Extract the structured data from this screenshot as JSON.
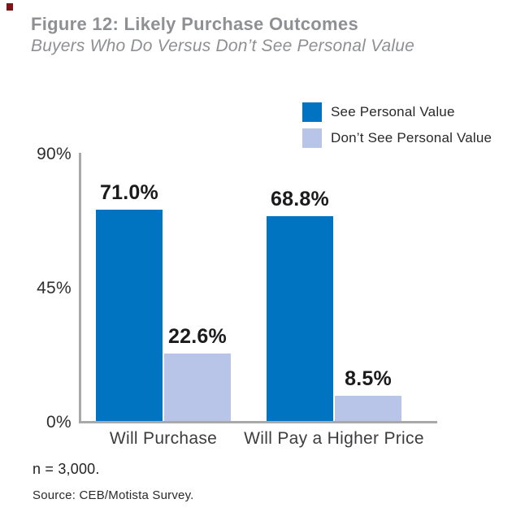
{
  "figure": {
    "title": "Figure 12: Likely Purchase Outcomes",
    "subtitle": "Buyers Who Do Versus Don’t See Personal Value"
  },
  "colors": {
    "see_value_blue": "#0074c1",
    "dont_see_value_blue": "#b8c5e8",
    "axis_gray": "#a9a9ab",
    "title_gray": "#8e9094",
    "corner_mark_red": "#7d1517"
  },
  "legend": {
    "items": [
      {
        "label": "See Personal Value",
        "color": "#0074c1"
      },
      {
        "label": "Don’t See Personal Value",
        "color": "#b8c5e8"
      }
    ]
  },
  "chart_data": {
    "type": "bar",
    "title": "Figure 12: Likely Purchase Outcomes",
    "subtitle": "Buyers Who Do Versus Don’t See Personal Value",
    "categories": [
      "Will Purchase",
      "Will Pay a Higher Price"
    ],
    "series": [
      {
        "name": "See Personal Value",
        "color": "#0074c1",
        "values": [
          71.0,
          68.8
        ],
        "labels": [
          "71.0%",
          "68.8%"
        ]
      },
      {
        "name": "Don’t See Personal Value",
        "color": "#b8c5e8",
        "values": [
          22.6,
          8.5
        ],
        "labels": [
          "22.6%",
          "8.5%"
        ]
      }
    ],
    "xlabel": "",
    "ylabel": "",
    "ylim": [
      0,
      90
    ],
    "yticks": [
      {
        "value": 90,
        "label": "90%"
      },
      {
        "value": 45,
        "label": "45%"
      },
      {
        "value": 0,
        "label": "0%"
      }
    ],
    "grid": false,
    "legend_position": "top-right"
  },
  "footer": {
    "note": "n = 3,000.",
    "source": "Source: CEB/Motista Survey."
  }
}
